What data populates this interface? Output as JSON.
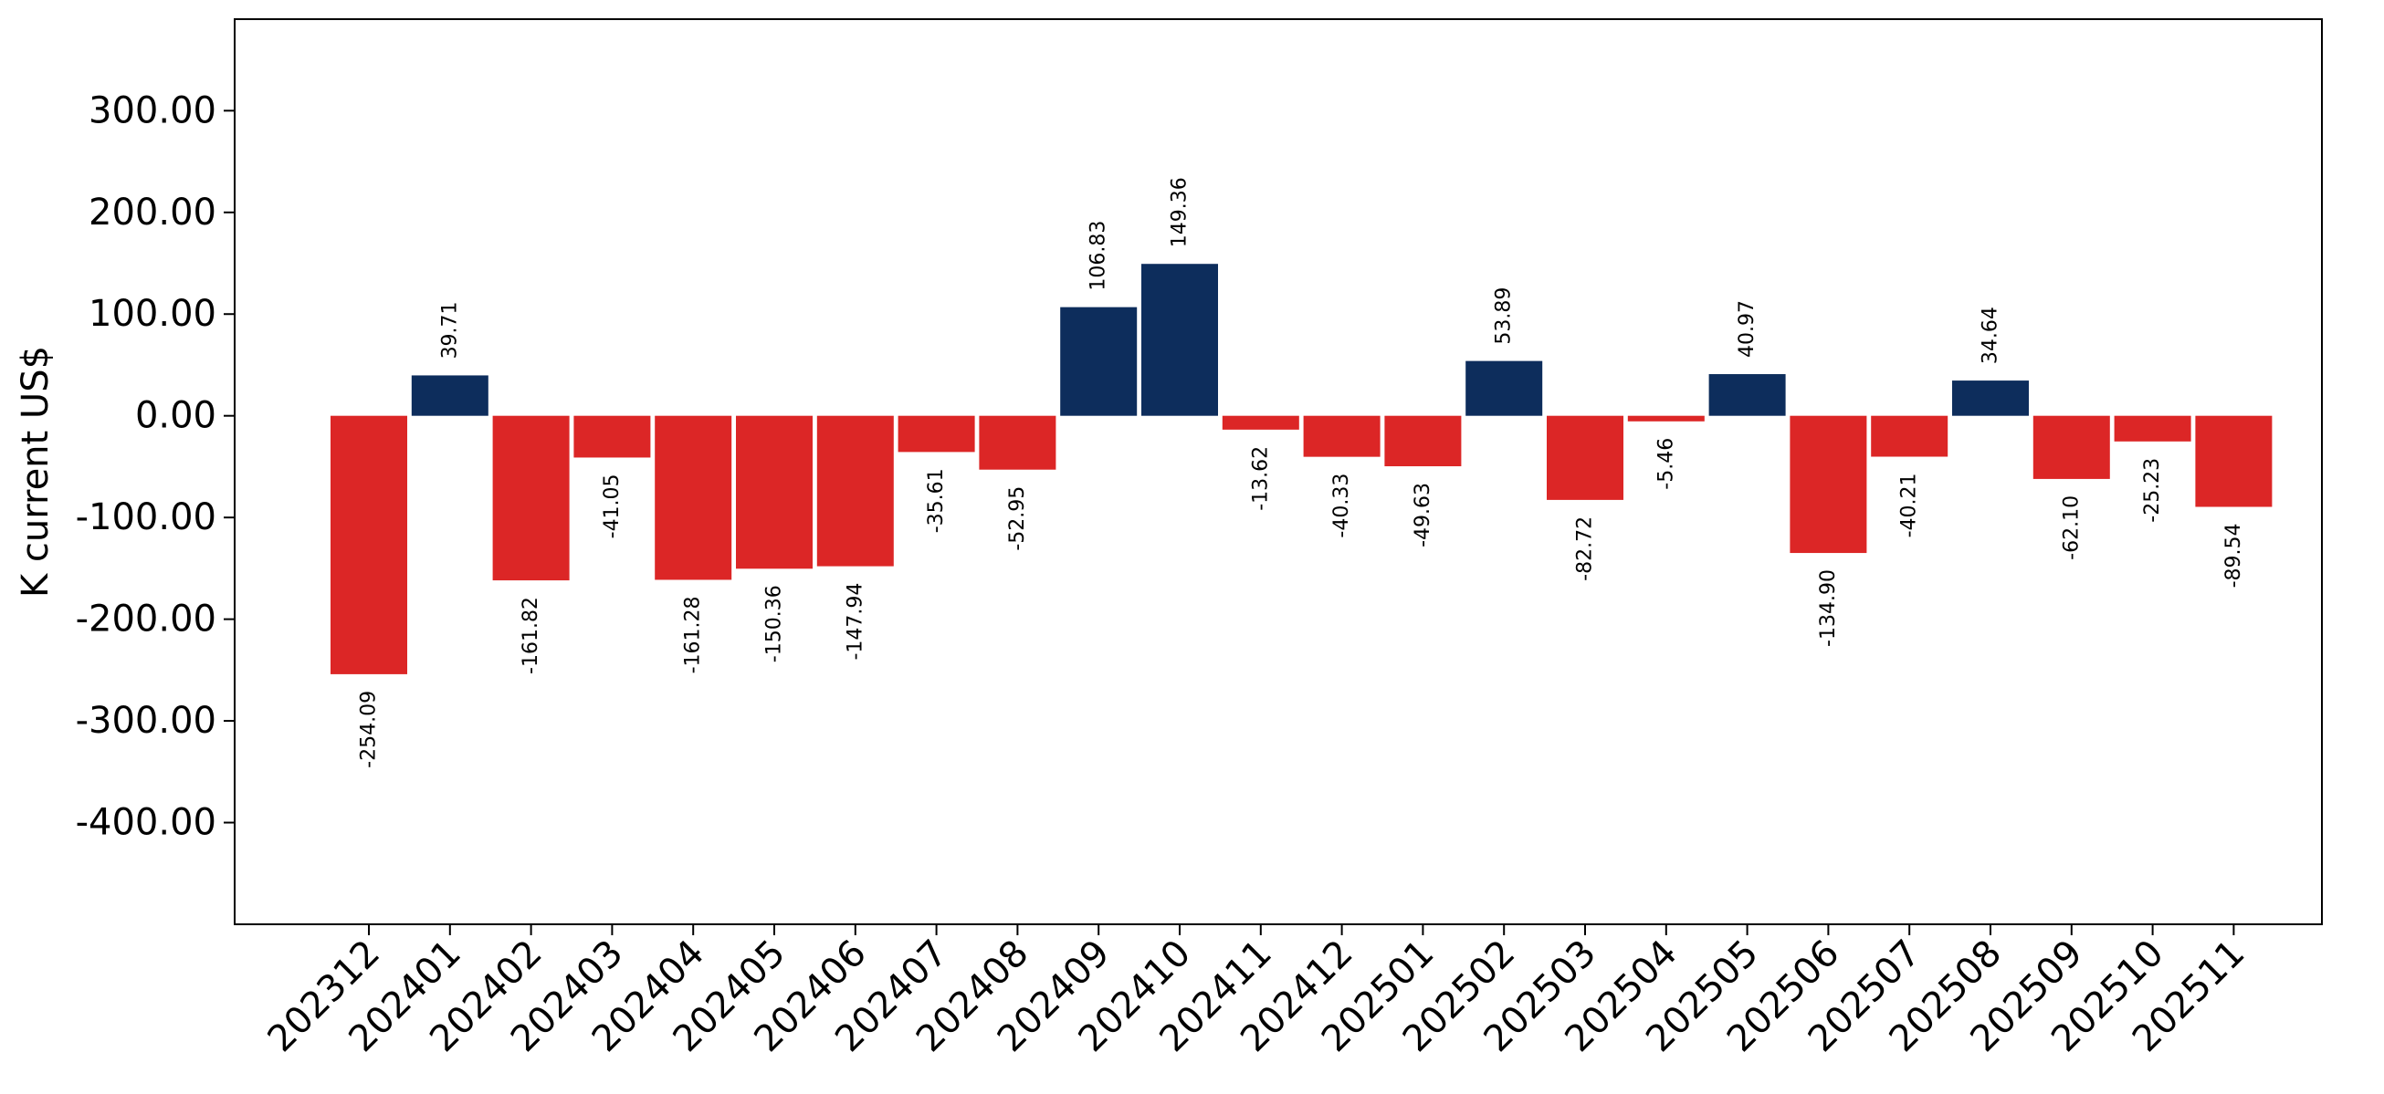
{
  "chart_data": {
    "type": "bar",
    "title": "",
    "xlabel": "",
    "ylabel": "K current US$",
    "ylim": [
      -500,
      390
    ],
    "yticks": [
      300,
      200,
      100,
      0,
      -100,
      -200,
      -300,
      -400
    ],
    "ytick_labels": [
      "300.00",
      "200.00",
      "100.00",
      "0.00",
      "-100.00",
      "-200.00",
      "-300.00",
      "-400.00"
    ],
    "grid": false,
    "legend": "none",
    "categories": [
      "202312",
      "202401",
      "202402",
      "202403",
      "202404",
      "202405",
      "202406",
      "202407",
      "202408",
      "202409",
      "202410",
      "202411",
      "202412",
      "202501",
      "202502",
      "202503",
      "202504",
      "202505",
      "202506",
      "202507",
      "202508",
      "202509",
      "202510",
      "202511"
    ],
    "values": [
      -254.09,
      39.71,
      -161.82,
      -41.05,
      -161.28,
      -150.36,
      -147.94,
      -35.61,
      -52.95,
      106.83,
      149.36,
      -13.62,
      -40.33,
      -49.63,
      53.89,
      -82.72,
      -5.46,
      40.97,
      -134.9,
      -40.21,
      34.64,
      -62.1,
      -25.23,
      -89.54
    ],
    "value_labels": [
      "-254.09",
      "39.71",
      "-161.82",
      "-41.05",
      "-161.28",
      "-150.36",
      "-147.94",
      "-35.61",
      "-52.95",
      "106.83",
      "149.36",
      "-13.62",
      "-40.33",
      "-49.63",
      "53.89",
      "-82.72",
      "-5.46",
      "40.97",
      "-134.90",
      "-40.21",
      "34.64",
      "-62.10",
      "-25.23",
      "-89.54"
    ],
    "colors": {
      "positive": "#0d2d5c",
      "negative": "#dc2626"
    }
  }
}
